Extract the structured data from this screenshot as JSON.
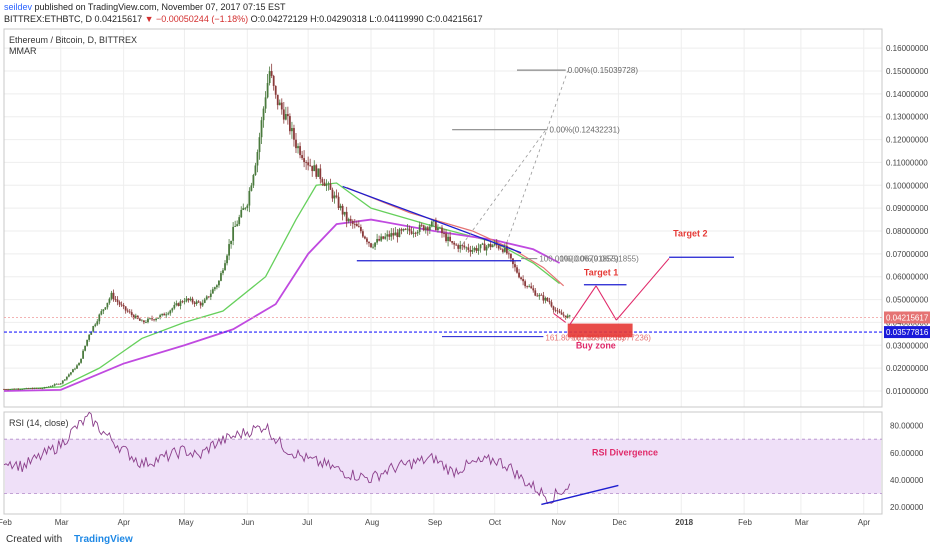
{
  "header": {
    "author": "seildev",
    "published": "published on TradingView.com, November 07, 2017 07:15 EST",
    "symbol": "BITTREX:ETHBTC, D",
    "price": "0.04215617",
    "change": "▼ −0.00050244 (−1.18%)",
    "ohlc": "O:0.04272129 H:0.04290318 L:0.04119990 C:0.04215617"
  },
  "footer": {
    "created_with": "Created with",
    "brand": "TradingView"
  },
  "chart_data": [
    {
      "type": "candlestick",
      "title": "Ethereum / Bitcoin, D, BITTREX",
      "subtitle": "MMAR",
      "y_ticks": [
        "0.16000000",
        "0.15000000",
        "0.14000000",
        "0.13000000",
        "0.12000000",
        "0.11000000",
        "0.10000000",
        "0.09000000",
        "0.08000000",
        "0.07000000",
        "0.06000000",
        "0.05000000",
        "0.04000000",
        "0.03000000",
        "0.02000000",
        "0.01000000"
      ],
      "ylim": [
        0.0,
        0.165
      ],
      "x_ticks": [
        "Feb",
        "Mar",
        "Apr",
        "May",
        "Jun",
        "Jul",
        "Aug",
        "Sep",
        "Oct",
        "Nov",
        "Dec",
        "2018",
        "Feb",
        "Mar",
        "Apr"
      ],
      "price_points": [
        [
          "2017-02-01",
          0.0108
        ],
        [
          "2017-02-20",
          0.0112
        ],
        [
          "2017-03-01",
          0.0135
        ],
        [
          "2017-03-10",
          0.022
        ],
        [
          "2017-03-15",
          0.035
        ],
        [
          "2017-03-20",
          0.043
        ],
        [
          "2017-03-26",
          0.052
        ],
        [
          "2017-04-01",
          0.046
        ],
        [
          "2017-04-10",
          0.04
        ],
        [
          "2017-04-20",
          0.043
        ],
        [
          "2017-05-01",
          0.05
        ],
        [
          "2017-05-10",
          0.048
        ],
        [
          "2017-05-18",
          0.058
        ],
        [
          "2017-05-25",
          0.08
        ],
        [
          "2017-06-01",
          0.093
        ],
        [
          "2017-06-06",
          0.115
        ],
        [
          "2017-06-10",
          0.14
        ],
        [
          "2017-06-12",
          0.15
        ],
        [
          "2017-06-15",
          0.138
        ],
        [
          "2017-06-20",
          0.13
        ],
        [
          "2017-06-25",
          0.118
        ],
        [
          "2017-07-01",
          0.11
        ],
        [
          "2017-07-08",
          0.103
        ],
        [
          "2017-07-15",
          0.093
        ],
        [
          "2017-07-20",
          0.085
        ],
        [
          "2017-07-27",
          0.08
        ],
        [
          "2017-08-01",
          0.074
        ],
        [
          "2017-08-10",
          0.078
        ],
        [
          "2017-08-20",
          0.08
        ],
        [
          "2017-09-01",
          0.083
        ],
        [
          "2017-09-10",
          0.074
        ],
        [
          "2017-09-20",
          0.072
        ],
        [
          "2017-10-01",
          0.074
        ],
        [
          "2017-10-06",
          0.072
        ],
        [
          "2017-10-10",
          0.065
        ],
        [
          "2017-10-15",
          0.058
        ],
        [
          "2017-10-22",
          0.052
        ],
        [
          "2017-10-28",
          0.049
        ],
        [
          "2017-11-01",
          0.044
        ],
        [
          "2017-11-07",
          0.04215617
        ]
      ],
      "ma_fast": [
        [
          "2017-02-01",
          0.0105
        ],
        [
          "2017-03-01",
          0.0118
        ],
        [
          "2017-03-20",
          0.02
        ],
        [
          "2017-04-10",
          0.033
        ],
        [
          "2017-05-01",
          0.04
        ],
        [
          "2017-05-20",
          0.045
        ],
        [
          "2017-06-10",
          0.06
        ],
        [
          "2017-06-25",
          0.085
        ],
        [
          "2017-07-05",
          0.1
        ],
        [
          "2017-07-15",
          0.101
        ],
        [
          "2017-08-01",
          0.09
        ],
        [
          "2017-09-01",
          0.082
        ],
        [
          "2017-10-01",
          0.075
        ],
        [
          "2017-10-20",
          0.066
        ],
        [
          "2017-11-02",
          0.057
        ]
      ],
      "ma_slow": [
        [
          "2017-02-01",
          0.01
        ],
        [
          "2017-03-01",
          0.0105
        ],
        [
          "2017-04-01",
          0.022
        ],
        [
          "2017-05-01",
          0.03
        ],
        [
          "2017-05-25",
          0.037
        ],
        [
          "2017-06-15",
          0.048
        ],
        [
          "2017-07-01",
          0.07
        ],
        [
          "2017-07-15",
          0.083
        ],
        [
          "2017-08-01",
          0.085
        ],
        [
          "2017-09-01",
          0.08
        ],
        [
          "2017-10-01",
          0.076
        ],
        [
          "2017-10-20",
          0.072
        ],
        [
          "2017-11-02",
          0.066
        ]
      ],
      "price_label": "0.04215617",
      "support_label": "0.03577816",
      "support_level": 0.03577816,
      "annotations": {
        "fib_top_label": "0.00%(0.15039728)",
        "fib_top_value": 0.15039728,
        "fib_mid_label": "0.00%(0.12432231)",
        "fib_mid_value": 0.12432231,
        "fib_100_label": "100.00%(0.06791855)",
        "fib_100b_label": "100.00%(0.06791855)",
        "fib_100_value": 0.06791855,
        "fib_low_label": "161.80%(0.03377236)",
        "fib_low_b_label": "161.80%(0.03377236)",
        "fib_low_value": 0.03377236,
        "buy_zone": "Buy zone",
        "target1": "Target 1",
        "target2": "Target 2"
      },
      "colors": {
        "up": "#4a7a3d",
        "down": "#8a3a3a",
        "ma_fast": "#66d05c",
        "ma_slow": "#c04ae0",
        "trend": "#1e1ed0",
        "annot": "#e02a6a",
        "support": "#2020ff",
        "label_red": "#e53935"
      }
    },
    {
      "type": "line",
      "title": "RSI (14, close)",
      "y_ticks": [
        "80.00000",
        "60.00000",
        "40.00000",
        "20.00000"
      ],
      "ylim": [
        15,
        90
      ],
      "band": [
        30,
        70
      ],
      "rsi_points": [
        [
          "2017-02-01",
          55
        ],
        [
          "2017-02-10",
          50
        ],
        [
          "2017-02-20",
          58
        ],
        [
          "2017-03-01",
          66
        ],
        [
          "2017-03-08",
          78
        ],
        [
          "2017-03-15",
          86
        ],
        [
          "2017-03-22",
          75
        ],
        [
          "2017-04-01",
          62
        ],
        [
          "2017-04-10",
          52
        ],
        [
          "2017-04-20",
          56
        ],
        [
          "2017-05-01",
          62
        ],
        [
          "2017-05-08",
          57
        ],
        [
          "2017-05-15",
          66
        ],
        [
          "2017-05-25",
          72
        ],
        [
          "2017-06-02",
          76
        ],
        [
          "2017-06-10",
          80
        ],
        [
          "2017-06-15",
          70
        ],
        [
          "2017-06-20",
          63
        ],
        [
          "2017-07-01",
          55
        ],
        [
          "2017-07-10",
          51
        ],
        [
          "2017-07-20",
          45
        ],
        [
          "2017-08-01",
          41
        ],
        [
          "2017-08-10",
          48
        ],
        [
          "2017-08-20",
          52
        ],
        [
          "2017-09-01",
          56
        ],
        [
          "2017-09-10",
          46
        ],
        [
          "2017-09-20",
          52
        ],
        [
          "2017-10-01",
          55
        ],
        [
          "2017-10-08",
          50
        ],
        [
          "2017-10-15",
          40
        ],
        [
          "2017-10-22",
          33
        ],
        [
          "2017-10-28",
          26
        ],
        [
          "2017-11-01",
          30
        ],
        [
          "2017-11-07",
          36
        ]
      ],
      "annotation": "RSI Divergence",
      "colors": {
        "line": "#8b3f8b",
        "band": "#efe0f8",
        "band_line": "#b38ec9",
        "divergence": "#1e1ed0",
        "annot": "#e02a6a"
      }
    }
  ]
}
